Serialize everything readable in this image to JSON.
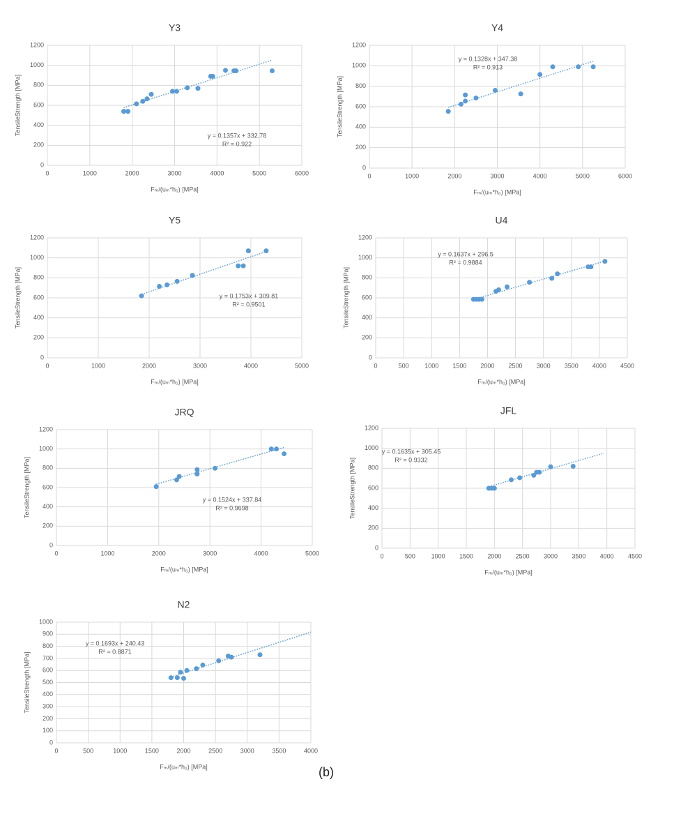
{
  "chart_data": [
    {
      "type": "scatter",
      "title": "Y3",
      "x_label": "Fₘ/(uₘ*h₀)  [MPa]",
      "y_label": "TensileStrength [MPa]",
      "color": "#5b9bd5",
      "grid": true,
      "x": [
        1800,
        1900,
        2100,
        2250,
        2350,
        2450,
        2950,
        3050,
        3300,
        3550,
        3850,
        3900,
        4200,
        4400,
        4450,
        5300
      ],
      "values": [
        540,
        540,
        615,
        640,
        665,
        710,
        740,
        740,
        775,
        770,
        890,
        890,
        950,
        945,
        945,
        945
      ],
      "xlim": [
        0,
        6000
      ],
      "xticks": [
        0,
        1000,
        2000,
        3000,
        4000,
        5000,
        6000
      ],
      "ylim": [
        0,
        1200
      ],
      "yticks": [
        0,
        200,
        400,
        600,
        800,
        1000,
        1200
      ],
      "trendline": {
        "slope": 0.1357,
        "intercept": 332.78,
        "x": [
          1800,
          5300
        ],
        "equation": "y = 0.1357x + 332.78",
        "r2_label": "R² = 0.922"
      }
    },
    {
      "type": "scatter",
      "title": "Y4",
      "x_label": "Fₘ/(uₘ*h₀)  [MPa]",
      "y_label": "TensileStrength [MPa]",
      "color": "#5b9bd5",
      "grid": true,
      "x": [
        1850,
        2150,
        2250,
        2250,
        2500,
        2950,
        3550,
        4000,
        4300,
        4900,
        5250
      ],
      "values": [
        555,
        625,
        715,
        655,
        685,
        760,
        725,
        915,
        990,
        990,
        990
      ],
      "xlim": [
        0,
        6000
      ],
      "xticks": [
        0,
        1000,
        2000,
        3000,
        4000,
        5000,
        6000
      ],
      "ylim": [
        0,
        1200
      ],
      "yticks": [
        0,
        200,
        400,
        600,
        800,
        1000,
        1200
      ],
      "trendline": {
        "slope": 0.1328,
        "intercept": 347.38,
        "x": [
          1850,
          5250
        ],
        "equation": "y = 0.1328x + 347.38",
        "r2_label": "R² = 0.913"
      }
    },
    {
      "type": "scatter",
      "title": "Y5",
      "x_label": "Fₘ/(uₘ*h₀)  [MPa]",
      "y_label": "TensileStrength [MPa]",
      "color": "#5b9bd5",
      "grid": true,
      "x": [
        1850,
        2200,
        2350,
        2550,
        2850,
        3750,
        3850,
        3950,
        4300
      ],
      "values": [
        620,
        715,
        730,
        765,
        825,
        920,
        920,
        1070,
        1070
      ],
      "xlim": [
        0,
        5000
      ],
      "xticks": [
        0,
        1000,
        2000,
        3000,
        4000,
        5000
      ],
      "ylim": [
        0,
        1200
      ],
      "yticks": [
        0,
        200,
        400,
        600,
        800,
        1000,
        1200
      ],
      "trendline": {
        "slope": 0.1753,
        "intercept": 309.81,
        "x": [
          1850,
          4300
        ],
        "equation": "y = 0.1753x + 309.81",
        "r2_label": "R² = 0.9501"
      }
    },
    {
      "type": "scatter",
      "title": "U4",
      "x_label": "Fₘ/(uₘ*h₀)  [MPa]",
      "y_label": "TensileStrength [MPa]",
      "color": "#5b9bd5",
      "grid": true,
      "x": [
        1750,
        1800,
        1850,
        1900,
        2150,
        2200,
        2350,
        2750,
        3150,
        3250,
        3800,
        3850,
        4100
      ],
      "values": [
        585,
        585,
        585,
        585,
        665,
        680,
        710,
        755,
        795,
        840,
        910,
        910,
        965
      ],
      "xlim": [
        0,
        4500
      ],
      "xticks": [
        0,
        500,
        1000,
        1500,
        2000,
        2500,
        3000,
        3500,
        4000,
        4500
      ],
      "ylim": [
        0,
        1200
      ],
      "yticks": [
        0,
        200,
        400,
        600,
        800,
        1000,
        1200
      ],
      "trendline": {
        "slope": 0.1637,
        "intercept": 296.5,
        "x": [
          1750,
          4100
        ],
        "equation": "y = 0.1637x + 296.5",
        "r2_label": "R² = 0.9884"
      }
    },
    {
      "type": "scatter",
      "title": "JRQ",
      "x_label": "Fₘ/(uₘ*h₀)  [MPa]",
      "y_label": "TensileStrength [MPa]",
      "color": "#5b9bd5",
      "grid": true,
      "x": [
        1950,
        2350,
        2400,
        2750,
        2750,
        3100,
        4200,
        4300,
        4450
      ],
      "values": [
        610,
        680,
        715,
        740,
        785,
        800,
        1000,
        1000,
        950
      ],
      "xlim": [
        0,
        5000
      ],
      "xticks": [
        0,
        1000,
        2000,
        3000,
        4000,
        5000
      ],
      "ylim": [
        0,
        1200
      ],
      "yticks": [
        0,
        200,
        400,
        600,
        800,
        1000,
        1200
      ],
      "trendline": {
        "slope": 0.1524,
        "intercept": 337.84,
        "x": [
          1950,
          4450
        ],
        "equation": "y = 0.1524x + 337.84",
        "r2_label": "R² = 0.9698"
      }
    },
    {
      "type": "scatter",
      "title": "JFL",
      "x_label": "Fₘ/(uₘ*h₀)  [MPa]",
      "y_label": "TensileStrength [MPa]",
      "color": "#5b9bd5",
      "grid": true,
      "x": [
        1900,
        1950,
        2000,
        2300,
        2450,
        2700,
        2750,
        2800,
        3000,
        3400
      ],
      "values": [
        600,
        600,
        600,
        685,
        705,
        730,
        760,
        760,
        815,
        820
      ],
      "xlim": [
        0,
        4500
      ],
      "xticks": [
        0,
        500,
        1000,
        1500,
        2000,
        2500,
        3000,
        3500,
        4000,
        4500
      ],
      "ylim": [
        0,
        1200
      ],
      "yticks": [
        0,
        200,
        400,
        600,
        800,
        1000,
        1200
      ],
      "trendline": {
        "slope": 0.1635,
        "intercept": 305.45,
        "x": [
          1900,
          3950
        ],
        "equation": "y = 0.1635x + 305.45",
        "r2_label": "R² = 0.9332"
      }
    },
    {
      "type": "scatter",
      "title": "N2",
      "x_label": "Fₘ/(uₘ*h₀)  [MPa]",
      "y_label": "TensileStrength [MPa]",
      "color": "#5b9bd5",
      "grid": true,
      "x": [
        1800,
        1900,
        1950,
        2000,
        2050,
        2200,
        2300,
        2550,
        2700,
        2750,
        3200
      ],
      "values": [
        540,
        540,
        585,
        535,
        600,
        615,
        645,
        680,
        720,
        710,
        730
      ],
      "xlim": [
        0,
        4000
      ],
      "xticks": [
        0,
        500,
        1000,
        1500,
        2000,
        2500,
        3000,
        3500,
        4000
      ],
      "ylim": [
        0,
        1000
      ],
      "yticks": [
        0,
        100,
        200,
        300,
        400,
        500,
        600,
        700,
        800,
        900,
        1000
      ],
      "trendline": {
        "slope": 0.1693,
        "intercept": 240.43,
        "x": [
          1800,
          4000
        ],
        "equation": "y = 0.1693x + 240.43",
        "r2_label": "R² = 0.8871"
      }
    }
  ],
  "caption": "(b)"
}
